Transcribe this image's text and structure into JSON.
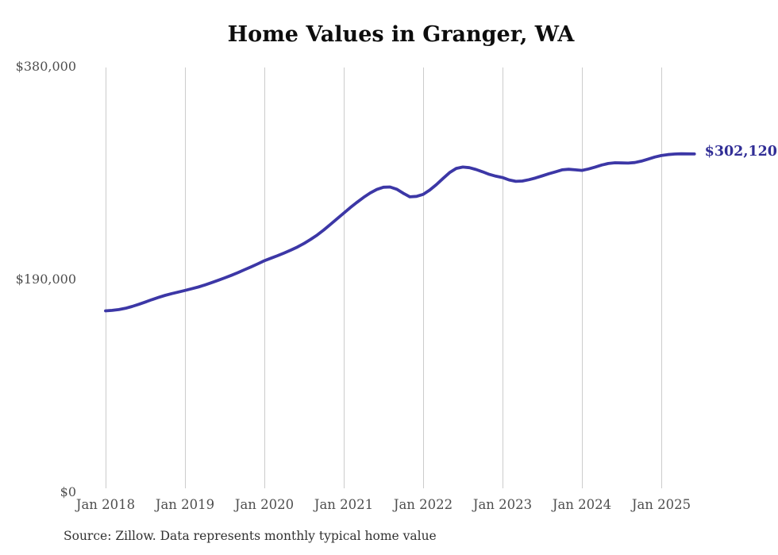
{
  "chart": {
    "title": "Home Values in Granger, WA",
    "end_label": "$302,120",
    "source": "Source: Zillow. Data represents monthly typical home value",
    "colors": {
      "line": "#3c37a6",
      "end_label": "#312e96",
      "grid": "#cccccc",
      "tick_text": "#4f4f4f",
      "title_text": "#0d0d0d",
      "source_text": "#323232",
      "background": "#ffffff"
    }
  },
  "chart_data": {
    "type": "line",
    "title": "Home Values in Granger, WA",
    "xlabel": "",
    "ylabel": "",
    "x_tick_labels": [
      "Jan 2018",
      "Jan 2019",
      "Jan 2020",
      "Jan 2021",
      "Jan 2022",
      "Jan 2023",
      "Jan 2024",
      "Jan 2025"
    ],
    "y_tick_labels": [
      "$380,000",
      "$190,000",
      "$0"
    ],
    "y_tick_values": [
      380000,
      190000,
      0
    ],
    "ylim": [
      0,
      380000
    ],
    "grid": "vertical-only",
    "legend": "none",
    "x_start_month": "2018-01",
    "x_end_month": "2025-06",
    "frequency": "monthly",
    "final_value": 302120,
    "final_value_label": "$302,120",
    "series": [
      {
        "name": "Typical home value",
        "monthly_values": [
          162000,
          162400,
          163100,
          164300,
          165900,
          167800,
          169900,
          172000,
          174000,
          175800,
          177400,
          178800,
          180200,
          181700,
          183300,
          185100,
          187100,
          189200,
          191400,
          193700,
          196100,
          198700,
          201300,
          204000,
          206700,
          209000,
          211300,
          213700,
          216200,
          219000,
          222200,
          225800,
          229800,
          234300,
          239200,
          244300,
          249300,
          254200,
          258900,
          263300,
          267200,
          270400,
          272400,
          272600,
          270600,
          267000,
          263800,
          264200,
          266000,
          269800,
          274700,
          280200,
          285400,
          289200,
          290400,
          289800,
          288200,
          286100,
          283900,
          282200,
          281000,
          278900,
          277600,
          277900,
          279100,
          280700,
          282500,
          284400,
          286100,
          287900,
          288400,
          287900,
          287400,
          288700,
          290400,
          292200,
          293600,
          294200,
          294100,
          293900,
          294400,
          295700,
          297500,
          299300,
          300700,
          301500,
          302000,
          302200,
          302150,
          302120
        ]
      }
    ],
    "source": "Source: Zillow. Data represents monthly typical home value"
  }
}
